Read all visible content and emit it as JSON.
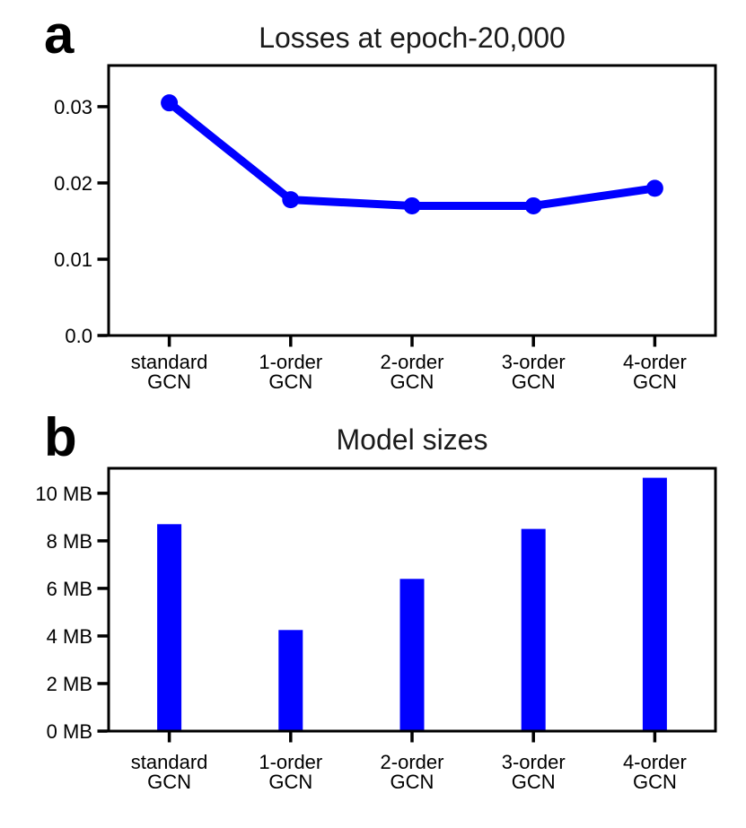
{
  "figure": {
    "background": "#ffffff",
    "accent_color": "#0000ff",
    "axis_color": "#000000",
    "panels": [
      {
        "label": "a",
        "title": "Losses at epoch-20,000"
      },
      {
        "label": "b",
        "title": "Model sizes"
      }
    ]
  },
  "chart_data": [
    {
      "type": "line",
      "panel_label": "a",
      "title": "Losses at epoch-20,000",
      "categories": [
        "standard GCN",
        "1-order GCN",
        "2-order GCN",
        "3-order GCN",
        "4-order GCN"
      ],
      "values": [
        0.0305,
        0.0178,
        0.017,
        0.017,
        0.0193
      ],
      "xlabel": "",
      "ylabel": "",
      "ylim": [
        0,
        0.0354
      ],
      "ytick_values": [
        0.0,
        0.01,
        0.02,
        0.03
      ],
      "ytick_labels": [
        "0.0",
        "0.01",
        "0.02",
        "0.03"
      ],
      "series_color": "#0000ff",
      "marker": "circle",
      "grid": false,
      "legend": "none"
    },
    {
      "type": "bar",
      "panel_label": "b",
      "title": "Model sizes",
      "categories": [
        "standard GCN",
        "1-order GCN",
        "2-order GCN",
        "3-order GCN",
        "4-order GCN"
      ],
      "values": [
        8.7,
        4.25,
        6.4,
        8.5,
        10.65
      ],
      "xlabel": "",
      "ylabel": "",
      "ylim": [
        0,
        11.05
      ],
      "ytick_values": [
        0,
        2,
        4,
        6,
        8,
        10
      ],
      "ytick_labels": [
        "0 MB",
        "2 MB",
        "4 MB",
        "6 MB",
        "8 MB",
        "10 MB"
      ],
      "series_color": "#0000ff",
      "grid": false,
      "legend": "none"
    }
  ]
}
